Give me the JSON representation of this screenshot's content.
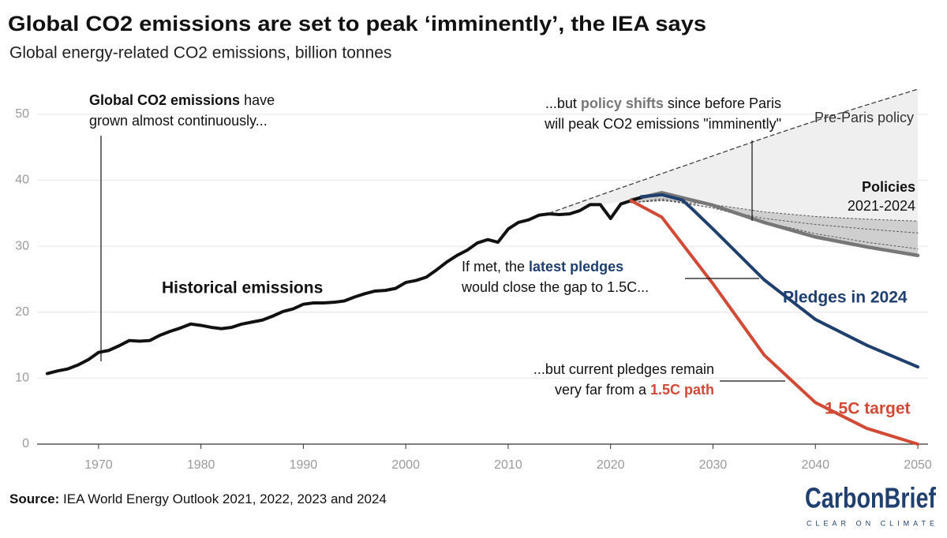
{
  "chart_data": {
    "type": "line",
    "title": "Global CO2 emissions are set to peak ‘imminently’, the IEA says",
    "subtitle": "Global energy-related CO2 emissions, billion tonnes",
    "xlim": [
      1964,
      2051
    ],
    "xticks": [
      1970,
      1980,
      1990,
      2000,
      2010,
      2020,
      2030,
      2040,
      2050
    ],
    "ylim": [
      0,
      55
    ],
    "yticks": [
      0,
      10,
      20,
      30,
      40,
      50
    ],
    "grid": true,
    "series": [
      {
        "name": "Historical emissions",
        "color": "#111111",
        "width": 4,
        "x": [
          1965,
          1966,
          1967,
          1968,
          1969,
          1970,
          1971,
          1972,
          1973,
          1974,
          1975,
          1976,
          1977,
          1978,
          1979,
          1980,
          1981,
          1982,
          1983,
          1984,
          1985,
          1986,
          1987,
          1988,
          1989,
          1990,
          1991,
          1992,
          1993,
          1994,
          1995,
          1996,
          1997,
          1998,
          1999,
          2000,
          2001,
          2002,
          2003,
          2004,
          2005,
          2006,
          2007,
          2008,
          2009,
          2010,
          2011,
          2012,
          2013,
          2014,
          2015,
          2016,
          2017,
          2018,
          2019,
          2020,
          2021,
          2022,
          2023
        ],
        "values": [
          10.7,
          11.1,
          11.4,
          12.0,
          12.8,
          13.9,
          14.2,
          14.9,
          15.7,
          15.6,
          15.7,
          16.5,
          17.1,
          17.6,
          18.2,
          18.0,
          17.7,
          17.5,
          17.7,
          18.2,
          18.5,
          18.8,
          19.4,
          20.1,
          20.5,
          21.2,
          21.4,
          21.4,
          21.5,
          21.7,
          22.3,
          22.8,
          23.2,
          23.3,
          23.6,
          24.5,
          24.8,
          25.3,
          26.4,
          27.6,
          28.6,
          29.4,
          30.5,
          31.0,
          30.6,
          32.6,
          33.6,
          34.0,
          34.7,
          34.9,
          34.8,
          34.9,
          35.4,
          36.3,
          36.3,
          34.2,
          36.4,
          36.9,
          37.4
        ]
      },
      {
        "name": "Pre-Paris policy",
        "color": "#333333",
        "width": 1.2,
        "dash": true,
        "x": [
          2014,
          2020,
          2025,
          2030,
          2035,
          2040,
          2045,
          2050
        ],
        "values": [
          35,
          38.3,
          41,
          43.7,
          46.4,
          49,
          51.4,
          53.8
        ]
      },
      {
        "name": "Pledges in 2024",
        "color": "#1f3f6e",
        "width": 4,
        "x": [
          2023,
          2025,
          2027,
          2028,
          2030,
          2035,
          2040,
          2045,
          2050
        ],
        "values": [
          37.5,
          37.8,
          37.0,
          35.6,
          32.6,
          24.9,
          18.9,
          15.0,
          11.7
        ]
      },
      {
        "name": "1.5C target",
        "color": "#d04a35",
        "width": 4,
        "x": [
          2022,
          2025,
          2030,
          2035,
          2040,
          2045,
          2050
        ],
        "values": [
          36.9,
          34.4,
          24.3,
          13.5,
          6.3,
          2.4,
          0
        ]
      }
    ],
    "policies": {
      "label": "Policies",
      "years": "2021-2024",
      "color": "#777777",
      "lines": [
        {
          "x": [
            2022,
            2025,
            2030,
            2035,
            2040,
            2045,
            2050
          ],
          "values": [
            36.6,
            36.9,
            36.3,
            35.2,
            34.5,
            34.1,
            33.8
          ],
          "dash": true
        },
        {
          "x": [
            2022,
            2025,
            2030,
            2035,
            2040,
            2045,
            2050
          ],
          "values": [
            36.6,
            37.0,
            35.8,
            34.2,
            33.3,
            32.6,
            32.0
          ],
          "dash": true
        },
        {
          "x": [
            2022,
            2025,
            2030,
            2035,
            2040,
            2045,
            2050
          ],
          "values": [
            36.6,
            37.2,
            35.8,
            33.7,
            31.9,
            30.6,
            29.6
          ],
          "dash": true
        },
        {
          "x": [
            2022,
            2025,
            2030,
            2035,
            2040,
            2045,
            2050
          ],
          "values": [
            37.0,
            38.1,
            36.2,
            33.6,
            31.4,
            29.9,
            28.6
          ],
          "dash": false
        }
      ]
    },
    "annotations": [
      {
        "lines": [
          [
            {
              "text": "Global CO2 emissions",
              "bold": true
            },
            {
              "text": " have"
            }
          ],
          [
            {
              "text": "grown almost continuously..."
            }
          ]
        ]
      },
      {
        "lines": [
          [
            {
              "text": "...but "
            },
            {
              "text": "policy shifts",
              "bold": true,
              "color": "#777777"
            },
            {
              "text": " since before Paris"
            }
          ],
          [
            {
              "text": "will peak CO2 emissions \"imminently\""
            }
          ]
        ]
      },
      {
        "lines": [
          [
            {
              "text": "If met, the "
            },
            {
              "text": "latest pledges",
              "bold": true,
              "color": "#1f3f6e"
            }
          ],
          [
            {
              "text": "would close the gap to 1.5C..."
            }
          ]
        ]
      },
      {
        "lines": [
          [
            {
              "text": "...but current pledges remain"
            }
          ],
          [
            {
              "text": "very far from a "
            },
            {
              "text": "1.5C path",
              "bold": true,
              "color": "#d04a35"
            }
          ]
        ]
      }
    ]
  },
  "source": {
    "label": "Source:",
    "text": " IEA World Energy Outlook 2021, 2022, 2023 and 2024"
  },
  "logo": {
    "name": "CarbonBrief",
    "tagline": "CLEAR ON CLIMATE"
  }
}
